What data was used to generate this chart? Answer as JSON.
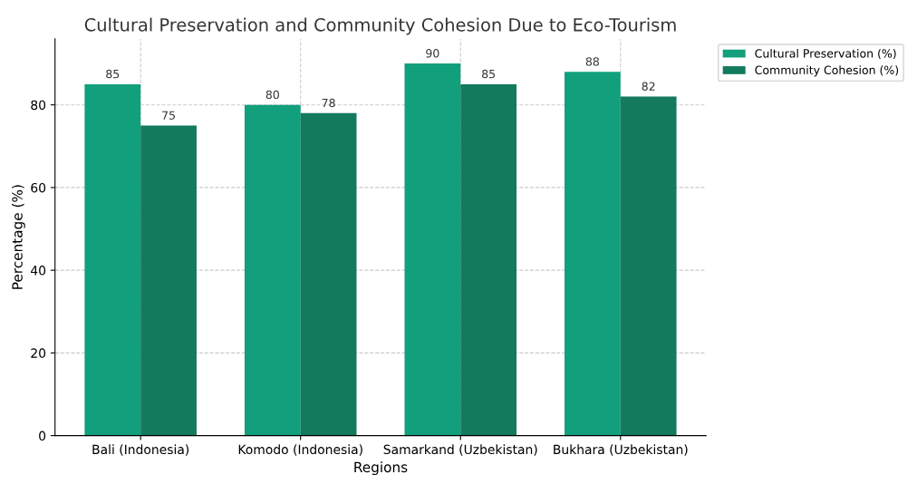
{
  "chart_data": {
    "type": "bar",
    "title": "Cultural Preservation and Community Cohesion Due to Eco-Tourism",
    "xlabel": "Regions",
    "ylabel": "Percentage (%)",
    "categories": [
      "Bali (Indonesia)",
      "Komodo (Indonesia)",
      "Samarkand (Uzbekistan)",
      "Bukhara (Uzbekistan)"
    ],
    "series": [
      {
        "name": "Cultural Preservation (%)",
        "color": "#12a07c",
        "values": [
          85,
          80,
          90,
          88
        ]
      },
      {
        "name": "Community Cohesion (%)",
        "color": "#147a5e",
        "values": [
          75,
          78,
          85,
          82
        ]
      }
    ],
    "ylim": [
      0,
      96
    ],
    "yticks": [
      0,
      20,
      40,
      60,
      80
    ],
    "grid": true,
    "legend": "top right",
    "data_labels": true
  }
}
